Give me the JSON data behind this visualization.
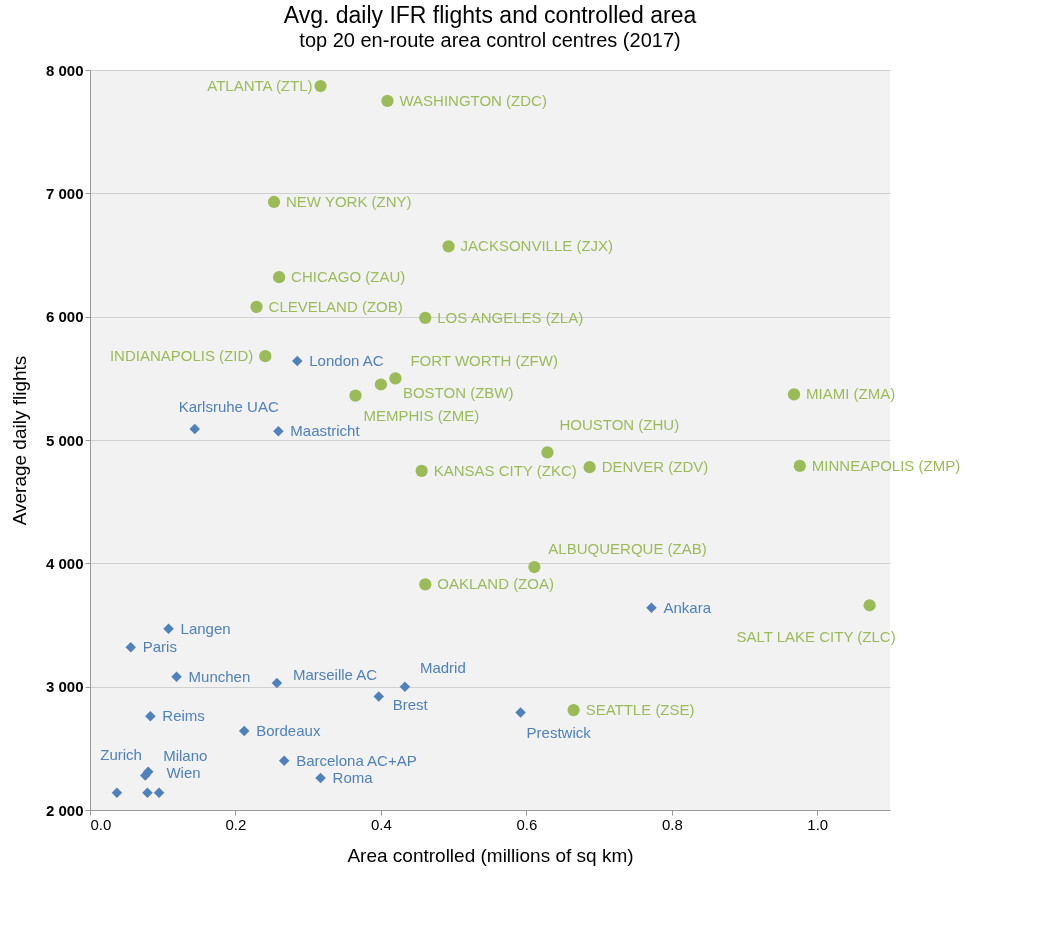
{
  "chart_data": {
    "type": "scatter",
    "title": "Avg. daily IFR flights and controlled area",
    "subtitle": "top 20 en-route area control centres (2017)",
    "xlabel": "Area controlled (millions of sq km)",
    "ylabel": "Average daily flights",
    "xlim": [
      0,
      1.1
    ],
    "xticks": [
      {
        "value": 0,
        "label": "0.0"
      },
      {
        "value": 0.2,
        "label": "0.2"
      },
      {
        "value": 0.4,
        "label": "0.4"
      },
      {
        "value": 0.6,
        "label": "0.6"
      },
      {
        "value": 0.8,
        "label": "0.8"
      },
      {
        "value": 1.0,
        "label": "1.0"
      }
    ],
    "ylim": [
      2000,
      8000
    ],
    "yticks": [
      {
        "value": 2000,
        "label": "2 000"
      },
      {
        "value": 3000,
        "label": "3 000"
      },
      {
        "value": 4000,
        "label": "4 000"
      },
      {
        "value": 5000,
        "label": "5 000"
      },
      {
        "value": 6000,
        "label": "6 000"
      },
      {
        "value": 7000,
        "label": "7 000"
      },
      {
        "value": 8000,
        "label": "8 000"
      }
    ],
    "grid": "y",
    "series": [
      {
        "color": "#9bbb59",
        "marker": "circle",
        "x": [
          0.317,
          0.409,
          0.253,
          0.493,
          0.26,
          0.229,
          0.461,
          0.241,
          0.42,
          0.4,
          0.365,
          0.968,
          0.629,
          0.456,
          0.687,
          0.976,
          0.611,
          0.461,
          1.072,
          0.665
        ],
        "values": [
          7870,
          7750,
          6930,
          6570,
          6320,
          6080,
          5990,
          5680,
          5500,
          5450,
          5360,
          5370,
          4900,
          4750,
          4780,
          4790,
          3970,
          3830,
          3660,
          2810
        ]
      },
      {
        "color": "#4f81bd",
        "marker": "diamond",
        "x": [
          0.285,
          0.144,
          0.259,
          0.772,
          0.108,
          0.056,
          0.119,
          0.257,
          0.433,
          0.397,
          0.592,
          0.083,
          0.212,
          0.267,
          0.317,
          0.076,
          0.08,
          0.079,
          0.037,
          0.095
        ],
        "values": [
          5640,
          5090,
          5070,
          3640,
          3470,
          3320,
          3080,
          3030,
          3000,
          2920,
          2790,
          2760,
          2640,
          2400,
          2260,
          2280,
          2310,
          2140,
          2140,
          2140
        ]
      }
    ],
    "annotations": [
      {
        "text": "ATLANTA (ZTL)",
        "x": 0.317,
        "y": 7870
      },
      {
        "text": "WASHINGTON (ZDC)",
        "x": 0.409,
        "y": 7750
      },
      {
        "text": "NEW YORK (ZNY)",
        "x": 0.253,
        "y": 6930
      },
      {
        "text": "JACKSONVILLE (ZJX)",
        "x": 0.493,
        "y": 6570
      },
      {
        "text": "CHICAGO (ZAU)",
        "x": 0.26,
        "y": 6320
      },
      {
        "text": "CLEVELAND (ZOB)",
        "x": 0.229,
        "y": 6080
      },
      {
        "text": "LOS ANGELES (ZLA)",
        "x": 0.461,
        "y": 5990
      },
      {
        "text": "INDIANAPOLIS (ZID)",
        "x": 0.241,
        "y": 5680
      },
      {
        "text": "FORT WORTH (ZFW)",
        "x": 0.42,
        "y": 5500
      },
      {
        "text": "BOSTON (ZBW)",
        "x": 0.4,
        "y": 5450
      },
      {
        "text": "MEMPHIS (ZME)",
        "x": 0.365,
        "y": 5360
      },
      {
        "text": "MIAMI (ZMA)",
        "x": 0.968,
        "y": 5370
      },
      {
        "text": "HOUSTON (ZHU)",
        "x": 0.629,
        "y": 4900
      },
      {
        "text": "KANSAS CITY (ZKC)",
        "x": 0.456,
        "y": 4750
      },
      {
        "text": "DENVER (ZDV)",
        "x": 0.687,
        "y": 4780
      },
      {
        "text": "MINNEAPOLIS (ZMP)",
        "x": 0.976,
        "y": 4790
      },
      {
        "text": "ALBUQUERQUE (ZAB)",
        "x": 0.611,
        "y": 3970
      },
      {
        "text": "OAKLAND (ZOA)",
        "x": 0.461,
        "y": 3830
      },
      {
        "text": "SALT LAKE CITY (ZLC)",
        "x": 1.072,
        "y": 3660
      },
      {
        "text": "SEATTLE (ZSE)",
        "x": 0.665,
        "y": 2810
      },
      {
        "text": "London AC",
        "x": 0.285,
        "y": 5640
      },
      {
        "text": "Karlsruhe UAC",
        "x": 0.144,
        "y": 5090
      },
      {
        "text": "Maastricht",
        "x": 0.259,
        "y": 5070
      },
      {
        "text": "Ankara",
        "x": 0.772,
        "y": 3640
      },
      {
        "text": "Langen",
        "x": 0.108,
        "y": 3470
      },
      {
        "text": "Paris",
        "x": 0.056,
        "y": 3320
      },
      {
        "text": "Munchen",
        "x": 0.119,
        "y": 3080
      },
      {
        "text": "Marseille AC",
        "x": 0.257,
        "y": 3030
      },
      {
        "text": "Madrid",
        "x": 0.433,
        "y": 3000
      },
      {
        "text": "Brest",
        "x": 0.397,
        "y": 2920
      },
      {
        "text": "Prestwick",
        "x": 0.592,
        "y": 2790
      },
      {
        "text": "Reims",
        "x": 0.083,
        "y": 2760
      },
      {
        "text": "Bordeaux",
        "x": 0.212,
        "y": 2640
      },
      {
        "text": "Barcelona AC+AP",
        "x": 0.267,
        "y": 2400
      },
      {
        "text": "Roma",
        "x": 0.317,
        "y": 2260
      },
      {
        "text": "Zurich",
        "x": 0.076,
        "y": 2280
      },
      {
        "text": "Milano",
        "x": 0.08,
        "y": 2310
      },
      {
        "text": "Wien",
        "x": 0.079,
        "y": 2140
      }
    ]
  }
}
